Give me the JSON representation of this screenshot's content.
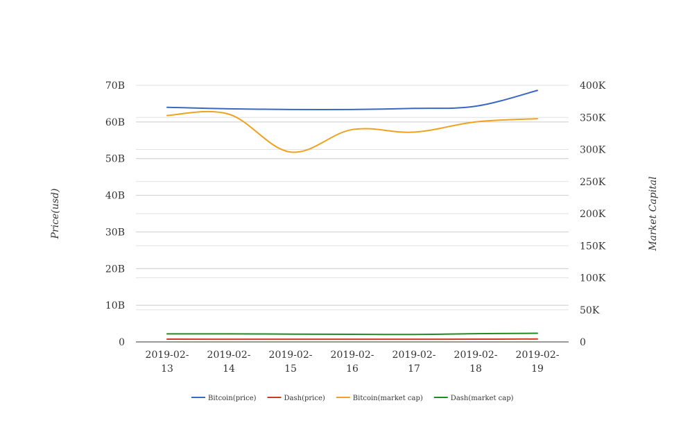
{
  "chart_data": {
    "type": "line",
    "x": [
      "2019-02-13",
      "2019-02-14",
      "2019-02-15",
      "2019-02-16",
      "2019-02-17",
      "2019-02-18",
      "2019-02-19"
    ],
    "x_tick_labels": [
      [
        "2019-02-",
        "13"
      ],
      [
        "2019-02-",
        "14"
      ],
      [
        "2019-02-",
        "15"
      ],
      [
        "2019-02-",
        "16"
      ],
      [
        "2019-02-",
        "17"
      ],
      [
        "2019-02-",
        "18"
      ],
      [
        "2019-02-",
        "19"
      ]
    ],
    "y_left": {
      "label": "Price(usd)",
      "range": [
        0,
        70000000000
      ],
      "ticks": [
        0,
        10000000000,
        20000000000,
        30000000000,
        40000000000,
        50000000000,
        60000000000,
        70000000000
      ],
      "tick_labels": [
        "0",
        "10B",
        "20B",
        "30B",
        "40B",
        "50B",
        "60B",
        "70B"
      ]
    },
    "y_right": {
      "label": "Market Capital",
      "range": [
        0,
        400000
      ],
      "ticks": [
        0,
        50000,
        100000,
        150000,
        200000,
        250000,
        300000,
        350000,
        400000
      ],
      "tick_labels": [
        "0",
        "50K",
        "100K",
        "150K",
        "200K",
        "250K",
        "300K",
        "350K",
        "400K"
      ]
    },
    "series": [
      {
        "name": "Bitcoin(price)",
        "axis": "left",
        "color": "#3a66c4",
        "values": [
          64000000000,
          63600000000,
          63400000000,
          63400000000,
          63700000000,
          64300000000,
          68600000000
        ]
      },
      {
        "name": "Dash(price)",
        "axis": "left",
        "color": "#cc3b1d",
        "values": [
          750000000,
          740000000,
          730000000,
          740000000,
          740000000,
          750000000,
          800000000
        ]
      },
      {
        "name": "Bitcoin(market cap)",
        "axis": "right",
        "color": "#f0a21e",
        "values": [
          353000,
          355000,
          296000,
          331000,
          327000,
          343000,
          348000
        ]
      },
      {
        "name": "Dash(market cap)",
        "axis": "right",
        "color": "#1e8c1e",
        "values": [
          12600,
          12600,
          12200,
          11900,
          11600,
          12800,
          13500
        ]
      }
    ],
    "grid": true,
    "legend_position": "bottom"
  }
}
